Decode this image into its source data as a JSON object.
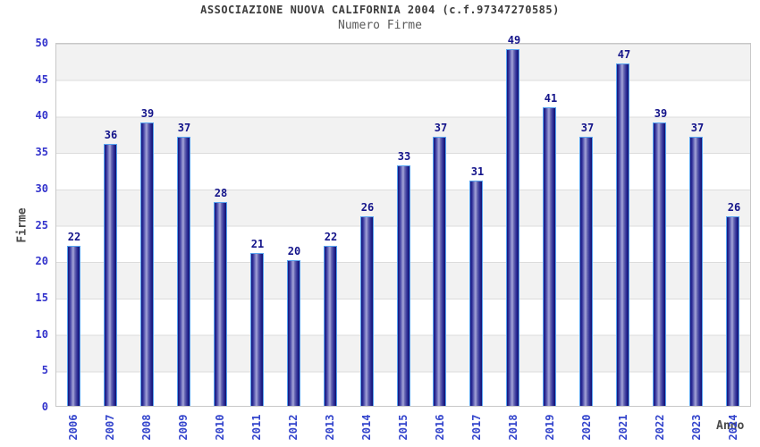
{
  "chart_data": {
    "type": "bar",
    "title": "ASSOCIAZIONE NUOVA CALIFORNIA 2004 (c.f.97347270585)",
    "subtitle": "Numero Firme",
    "xlabel": "Anno",
    "ylabel": "Firme",
    "categories": [
      "2006",
      "2007",
      "2008",
      "2009",
      "2010",
      "2011",
      "2012",
      "2013",
      "2014",
      "2015",
      "2016",
      "2017",
      "2018",
      "2019",
      "2020",
      "2021",
      "2022",
      "2023",
      "2024"
    ],
    "values": [
      22,
      36,
      39,
      37,
      28,
      21,
      20,
      22,
      26,
      33,
      37,
      31,
      49,
      41,
      37,
      47,
      39,
      37,
      26
    ],
    "ylim": [
      0,
      50
    ],
    "ytick_step": 5,
    "yticks": [
      0,
      5,
      10,
      15,
      20,
      25,
      30,
      35,
      40,
      45,
      50
    ],
    "legend": "none",
    "grid": "horizontal-bands",
    "colors": {
      "bar_dark": "#15157d",
      "bar_light": "#a6a6da",
      "bar_border": "#58a4f0",
      "value_label": "#14148a",
      "tick_label": "#3344cc",
      "title": "#3c3c3c",
      "subtitle": "#5a5a5a",
      "axis_title": "#4a4a4a",
      "band_gray": "#f2f2f2",
      "gridline": "#dcdcdc",
      "plot_border": "#c8c8c8"
    }
  }
}
